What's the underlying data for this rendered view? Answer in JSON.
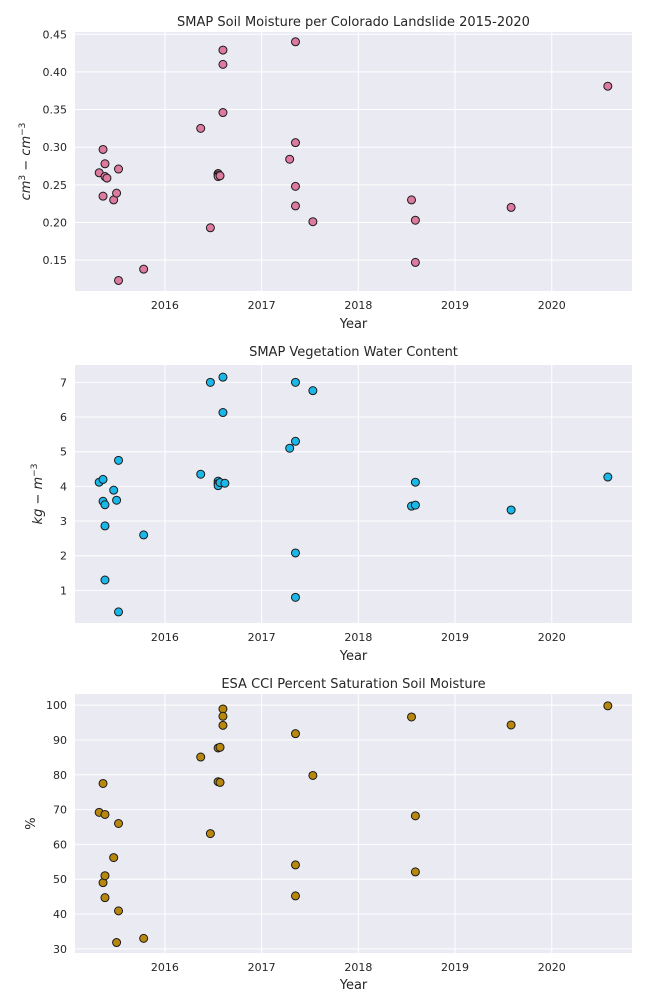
{
  "chart_data": [
    {
      "type": "scatter",
      "title": "SMAP Soil Moisture per Colorado Landslide 2015-2020",
      "xlabel": "Year",
      "ylabel": "cm^3 - cm^-3",
      "ylabel_parts": [
        "cm",
        "3",
        " − cm",
        "−3"
      ],
      "x_ticks": [
        "2016",
        "2017",
        "2018",
        "2019",
        "2020"
      ],
      "y_ticks": [
        "0.15",
        "0.20",
        "0.25",
        "0.30",
        "0.35",
        "0.40",
        "0.45"
      ],
      "xlim": [
        2015.07,
        2020.83
      ],
      "ylim": [
        0.109,
        0.453
      ],
      "color": "#dd7a9f",
      "grid": true,
      "points": [
        {
          "x": 2015.32,
          "y": 0.266
        },
        {
          "x": 2015.36,
          "y": 0.297
        },
        {
          "x": 2015.36,
          "y": 0.235
        },
        {
          "x": 2015.38,
          "y": 0.278
        },
        {
          "x": 2015.38,
          "y": 0.261
        },
        {
          "x": 2015.4,
          "y": 0.259
        },
        {
          "x": 2015.47,
          "y": 0.23
        },
        {
          "x": 2015.5,
          "y": 0.239
        },
        {
          "x": 2015.52,
          "y": 0.271
        },
        {
          "x": 2015.52,
          "y": 0.123
        },
        {
          "x": 2015.78,
          "y": 0.138
        },
        {
          "x": 2016.37,
          "y": 0.325
        },
        {
          "x": 2016.47,
          "y": 0.193
        },
        {
          "x": 2016.55,
          "y": 0.265
        },
        {
          "x": 2016.55,
          "y": 0.263
        },
        {
          "x": 2016.55,
          "y": 0.261
        },
        {
          "x": 2016.57,
          "y": 0.262
        },
        {
          "x": 2016.6,
          "y": 0.429
        },
        {
          "x": 2016.6,
          "y": 0.41
        },
        {
          "x": 2016.6,
          "y": 0.346
        },
        {
          "x": 2017.29,
          "y": 0.284
        },
        {
          "x": 2017.35,
          "y": 0.44
        },
        {
          "x": 2017.35,
          "y": 0.306
        },
        {
          "x": 2017.35,
          "y": 0.248
        },
        {
          "x": 2017.35,
          "y": 0.222
        },
        {
          "x": 2017.53,
          "y": 0.201
        },
        {
          "x": 2018.55,
          "y": 0.23
        },
        {
          "x": 2018.59,
          "y": 0.203
        },
        {
          "x": 2018.59,
          "y": 0.147
        },
        {
          "x": 2019.58,
          "y": 0.22
        },
        {
          "x": 2020.58,
          "y": 0.381
        }
      ]
    },
    {
      "type": "scatter",
      "title": "SMAP Vegetation Water Content",
      "xlabel": "Year",
      "ylabel": "kg - m^-3",
      "ylabel_parts": [
        "kg − m",
        "−3"
      ],
      "x_ticks": [
        "2016",
        "2017",
        "2018",
        "2019",
        "2020"
      ],
      "y_ticks": [
        "1",
        "2",
        "3",
        "4",
        "5",
        "6",
        "7"
      ],
      "xlim": [
        2015.07,
        2020.83
      ],
      "ylim": [
        0.06,
        7.5
      ],
      "color": "#1ab8e8",
      "grid": true,
      "points": [
        {
          "x": 2015.32,
          "y": 4.12
        },
        {
          "x": 2015.36,
          "y": 4.2
        },
        {
          "x": 2015.36,
          "y": 3.57
        },
        {
          "x": 2015.38,
          "y": 3.47
        },
        {
          "x": 2015.38,
          "y": 2.86
        },
        {
          "x": 2015.38,
          "y": 1.3
        },
        {
          "x": 2015.47,
          "y": 3.89
        },
        {
          "x": 2015.5,
          "y": 3.6
        },
        {
          "x": 2015.52,
          "y": 4.75
        },
        {
          "x": 2015.52,
          "y": 0.38
        },
        {
          "x": 2015.78,
          "y": 2.6
        },
        {
          "x": 2016.37,
          "y": 4.35
        },
        {
          "x": 2016.47,
          "y": 7.0
        },
        {
          "x": 2016.55,
          "y": 4.15
        },
        {
          "x": 2016.55,
          "y": 4.08
        },
        {
          "x": 2016.55,
          "y": 4.02
        },
        {
          "x": 2016.57,
          "y": 4.11
        },
        {
          "x": 2016.6,
          "y": 7.15
        },
        {
          "x": 2016.6,
          "y": 6.13
        },
        {
          "x": 2016.62,
          "y": 4.09
        },
        {
          "x": 2017.29,
          "y": 5.1
        },
        {
          "x": 2017.35,
          "y": 7.0
        },
        {
          "x": 2017.35,
          "y": 5.3
        },
        {
          "x": 2017.35,
          "y": 2.08
        },
        {
          "x": 2017.35,
          "y": 0.8
        },
        {
          "x": 2017.53,
          "y": 6.76
        },
        {
          "x": 2018.55,
          "y": 3.43
        },
        {
          "x": 2018.59,
          "y": 4.12
        },
        {
          "x": 2018.59,
          "y": 3.46
        },
        {
          "x": 2019.58,
          "y": 3.32
        },
        {
          "x": 2020.58,
          "y": 4.27
        }
      ]
    },
    {
      "type": "scatter",
      "title": "ESA CCI Percent Saturation Soil Moisture",
      "xlabel": "Year",
      "ylabel": "%",
      "ylabel_parts": [
        "%"
      ],
      "x_ticks": [
        "2016",
        "2017",
        "2018",
        "2019",
        "2020"
      ],
      "y_ticks": [
        "30",
        "40",
        "50",
        "60",
        "70",
        "80",
        "90",
        "100"
      ],
      "xlim": [
        2015.07,
        2020.83
      ],
      "ylim": [
        28.8,
        103.2
      ],
      "color": "#b8870e",
      "grid": true,
      "points": [
        {
          "x": 2015.32,
          "y": 69.2
        },
        {
          "x": 2015.36,
          "y": 77.5
        },
        {
          "x": 2015.36,
          "y": 49.0
        },
        {
          "x": 2015.38,
          "y": 68.6
        },
        {
          "x": 2015.38,
          "y": 51.0
        },
        {
          "x": 2015.38,
          "y": 44.7
        },
        {
          "x": 2015.47,
          "y": 56.2
        },
        {
          "x": 2015.52,
          "y": 66.0
        },
        {
          "x": 2015.52,
          "y": 40.9
        },
        {
          "x": 2015.5,
          "y": 31.8
        },
        {
          "x": 2015.78,
          "y": 33.0
        },
        {
          "x": 2016.37,
          "y": 85.1
        },
        {
          "x": 2016.47,
          "y": 63.1
        },
        {
          "x": 2016.55,
          "y": 87.7
        },
        {
          "x": 2016.57,
          "y": 87.9
        },
        {
          "x": 2016.55,
          "y": 78.0
        },
        {
          "x": 2016.57,
          "y": 77.8
        },
        {
          "x": 2016.6,
          "y": 98.9
        },
        {
          "x": 2016.6,
          "y": 96.8
        },
        {
          "x": 2016.6,
          "y": 94.2
        },
        {
          "x": 2017.35,
          "y": 91.8
        },
        {
          "x": 2017.35,
          "y": 54.1
        },
        {
          "x": 2017.35,
          "y": 45.2
        },
        {
          "x": 2017.53,
          "y": 79.8
        },
        {
          "x": 2018.55,
          "y": 96.6
        },
        {
          "x": 2018.59,
          "y": 68.2
        },
        {
          "x": 2018.59,
          "y": 52.1
        },
        {
          "x": 2019.58,
          "y": 94.3
        },
        {
          "x": 2020.58,
          "y": 99.8
        }
      ]
    }
  ]
}
